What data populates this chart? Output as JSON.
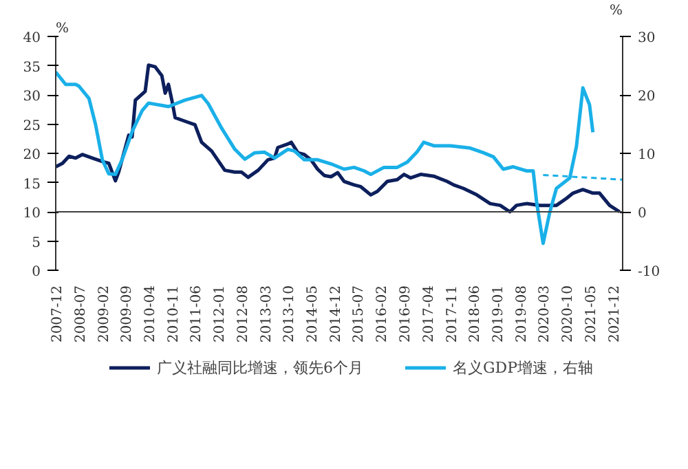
{
  "chart_data": {
    "type": "line",
    "ylabel": "%",
    "y2label": "%",
    "xlim": [
      "2007-12",
      "2022-03"
    ],
    "xticks": [
      "2007-12",
      "2008-07",
      "2009-02",
      "2009-09",
      "2010-04",
      "2010-11",
      "2011-06",
      "2012-01",
      "2012-08",
      "2013-03",
      "2013-10",
      "2014-05",
      "2014-12",
      "2015-07",
      "2016-02",
      "2016-09",
      "2017-04",
      "2017-11",
      "2018-06",
      "2019-01",
      "2019-08",
      "2020-03",
      "2020-10",
      "2021-05",
      "2021-12"
    ],
    "ylim": [
      0,
      40
    ],
    "yticks": [
      0,
      5,
      10,
      15,
      20,
      25,
      30,
      35,
      40
    ],
    "y2lim": [
      -10,
      30
    ],
    "y2ticks": [
      -10,
      0,
      10,
      20,
      30
    ],
    "grid": false,
    "legend": "bottom",
    "line_style": "solid",
    "ref_lines": [
      {
        "axis": "y2",
        "value": 0,
        "color": "#404040"
      }
    ],
    "series": [
      {
        "name": "广义社融同比增速，领先6个月",
        "color": "#0d1f5c",
        "x": [
          "2007-12",
          "2008-02",
          "2008-04",
          "2008-06",
          "2008-08",
          "2008-11",
          "2009-02",
          "2009-04",
          "2009-06",
          "2009-07",
          "2009-10",
          "2009-11",
          "2009-12",
          "2010-03",
          "2010-04",
          "2010-06",
          "2010-08",
          "2010-09",
          "2010-10",
          "2010-11",
          "2010-12",
          "2011-03",
          "2011-06",
          "2011-08",
          "2011-11",
          "2012-03",
          "2012-06",
          "2012-08",
          "2012-10",
          "2013-01",
          "2013-04",
          "2013-06",
          "2013-07",
          "2013-10",
          "2013-11",
          "2014-01",
          "2014-03",
          "2014-05",
          "2014-07",
          "2014-09",
          "2014-11",
          "2015-01",
          "2015-03",
          "2015-06",
          "2015-08",
          "2015-11",
          "2016-01",
          "2016-04",
          "2016-07",
          "2016-09",
          "2016-11",
          "2017-02",
          "2017-06",
          "2017-10",
          "2017-12",
          "2018-03",
          "2018-07",
          "2018-11",
          "2019-02",
          "2019-05",
          "2019-07",
          "2019-10",
          "2020-02",
          "2020-07",
          "2020-10",
          "2020-12",
          "2021-03",
          "2021-06",
          "2021-08",
          "2021-11",
          "2022-02"
        ],
        "values": [
          17.7,
          18.3,
          19.5,
          19.2,
          19.8,
          19.2,
          18.6,
          18.3,
          15.3,
          16.8,
          23.1,
          22.8,
          29.1,
          30.6,
          35.1,
          34.8,
          33.3,
          30.3,
          31.8,
          29.1,
          26.1,
          25.5,
          24.9,
          21.9,
          20.4,
          17.1,
          16.8,
          16.8,
          15.9,
          17.1,
          18.9,
          19.2,
          21.0,
          21.6,
          21.9,
          20.1,
          19.8,
          18.9,
          17.3,
          16.2,
          16.0,
          16.7,
          15.2,
          14.6,
          14.3,
          12.9,
          13.5,
          15.2,
          15.5,
          16.4,
          15.8,
          16.4,
          16.1,
          15.2,
          14.6,
          14.0,
          12.9,
          11.4,
          11.1,
          10.0,
          11.1,
          11.4,
          11.1,
          11.1,
          12.3,
          13.2,
          13.8,
          13.2,
          13.2,
          11.1,
          10.0
        ]
      },
      {
        "name": "名义GDP增速，右轴",
        "color": "#1ab0e8",
        "axis": "y2",
        "x": [
          "2007-12",
          "2008-03",
          "2008-06",
          "2008-07",
          "2008-10",
          "2008-12",
          "2009-02",
          "2009-04",
          "2009-06",
          "2009-08",
          "2009-11",
          "2010-02",
          "2010-04",
          "2010-10",
          "2011-03",
          "2011-08",
          "2011-10",
          "2012-02",
          "2012-06",
          "2012-09",
          "2012-12",
          "2013-03",
          "2013-06",
          "2013-10",
          "2013-12",
          "2014-03",
          "2014-07",
          "2014-11",
          "2015-03",
          "2015-06",
          "2015-09",
          "2015-11",
          "2016-03",
          "2016-07",
          "2016-10",
          "2017-01",
          "2017-03",
          "2017-06",
          "2017-11",
          "2018-05",
          "2018-09",
          "2018-12",
          "2019-03",
          "2019-06",
          "2019-10",
          "2019-12",
          "2020-01",
          "2020-03",
          "2020-05",
          "2020-07",
          "2020-11",
          "2021-01",
          "2021-03",
          "2021-05",
          "2021-06"
        ],
        "values": [
          23.9,
          21.8,
          21.8,
          21.5,
          19.4,
          14.9,
          8.9,
          6.5,
          6.4,
          8.9,
          13.7,
          17.3,
          18.6,
          18.0,
          19.1,
          19.9,
          18.5,
          14.3,
          10.7,
          9.0,
          10.1,
          10.2,
          9.2,
          10.7,
          10.4,
          8.9,
          8.9,
          8.2,
          7.3,
          7.6,
          7.0,
          6.4,
          7.6,
          7.6,
          8.5,
          10.3,
          11.9,
          11.3,
          11.3,
          10.9,
          10.1,
          9.4,
          7.3,
          7.7,
          7.0,
          7.0,
          1.7,
          -5.4,
          -0.1,
          4.0,
          5.8,
          11.2,
          21.2,
          18.3,
          13.6
        ]
      },
      {
        "color": "#1ab0e8",
        "axis": "y2",
        "line_style": "dashed",
        "x": [
          "2020-03",
          "2022-03"
        ],
        "values": [
          6.3,
          5.5
        ]
      }
    ]
  }
}
